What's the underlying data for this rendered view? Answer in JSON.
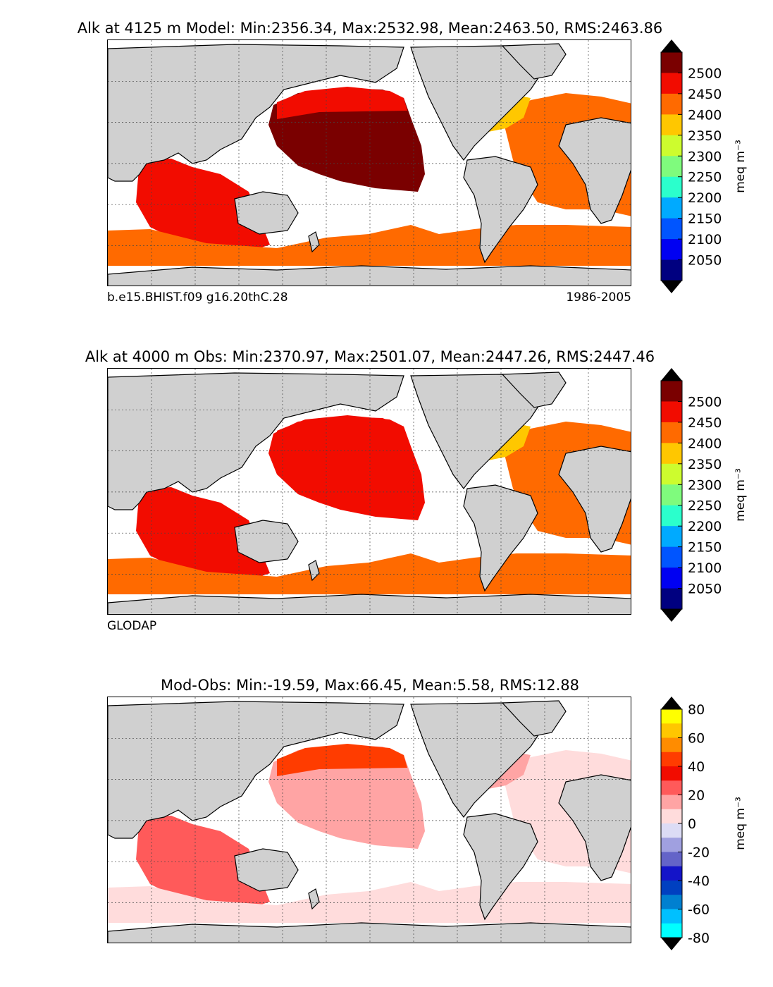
{
  "panels": [
    {
      "title": "Alk at 4125 m Model: Min:2356.34, Max:2532.98, Mean:2463.50, RMS:2463.86",
      "subtitle_left": "b.e15.BHIST.f09 g16.20thC.28",
      "subtitle_right": "1986-2005",
      "colorbar": {
        "ticks": [
          "2500",
          "2450",
          "2400",
          "2350",
          "2300",
          "2250",
          "2200",
          "2150",
          "2100",
          "2050"
        ],
        "units": "meq m⁻³",
        "colors": [
          "#7a0000",
          "#f20c00",
          "#ff6a00",
          "#ffc700",
          "#cdfc2e",
          "#7ffb7d",
          "#2bffcc",
          "#00aaff",
          "#0055ff",
          "#0000f2",
          "#000080"
        ]
      },
      "fields": {
        "pacific": "#7a0000",
        "pacific_edge": "#f20c00",
        "indian": "#f20c00",
        "south": "#ff6a00",
        "atlantic": "#ff6a00",
        "natl": "#ffc700"
      }
    },
    {
      "title": "Alk at 4000 m Obs: Min:2370.97, Max:2501.07, Mean:2447.26, RMS:2447.46",
      "subtitle_left": "GLODAP",
      "subtitle_right": "",
      "colorbar": {
        "ticks": [
          "2500",
          "2450",
          "2400",
          "2350",
          "2300",
          "2250",
          "2200",
          "2150",
          "2100",
          "2050"
        ],
        "units": "meq m⁻³",
        "colors": [
          "#7a0000",
          "#f20c00",
          "#ff6a00",
          "#ffc700",
          "#cdfc2e",
          "#7ffb7d",
          "#2bffcc",
          "#00aaff",
          "#0055ff",
          "#0000f2",
          "#000080"
        ]
      },
      "fields": {
        "pacific": "#f20c00",
        "pacific_edge": "#f20c00",
        "indian": "#f20c00",
        "south": "#ff6a00",
        "atlantic": "#ff6a00",
        "natl": "#ffc700"
      }
    },
    {
      "title": "Mod-Obs: Min:-19.59, Max:66.45, Mean:5.58, RMS:12.88",
      "subtitle_left": "",
      "subtitle_right": "",
      "colorbar": {
        "ticks": [
          "80",
          "60",
          "40",
          "20",
          "0",
          "-20",
          "-40",
          "-60",
          "-80"
        ],
        "units": "meq m⁻³",
        "colors": [
          "#ffff00",
          "#ffc700",
          "#ff8c00",
          "#ff3c00",
          "#f20c00",
          "#ff5a5a",
          "#ffa4a4",
          "#ffdcdc",
          "#dcdcf5",
          "#a0a0e0",
          "#6464c8",
          "#1414c8",
          "#0040c0",
          "#0080d0",
          "#00c0ff",
          "#00ffff"
        ]
      },
      "fields": {
        "pacific": "#ffa4a4",
        "pacific_edge": "#ff3c00",
        "indian": "#ff5a5a",
        "south": "#ffdcdc",
        "atlantic": "#ffdcdc",
        "natl": "#ffa4a4"
      }
    }
  ],
  "colors": {
    "land": "#d0d0d0",
    "coast": "#000000",
    "grid": "#444444"
  }
}
